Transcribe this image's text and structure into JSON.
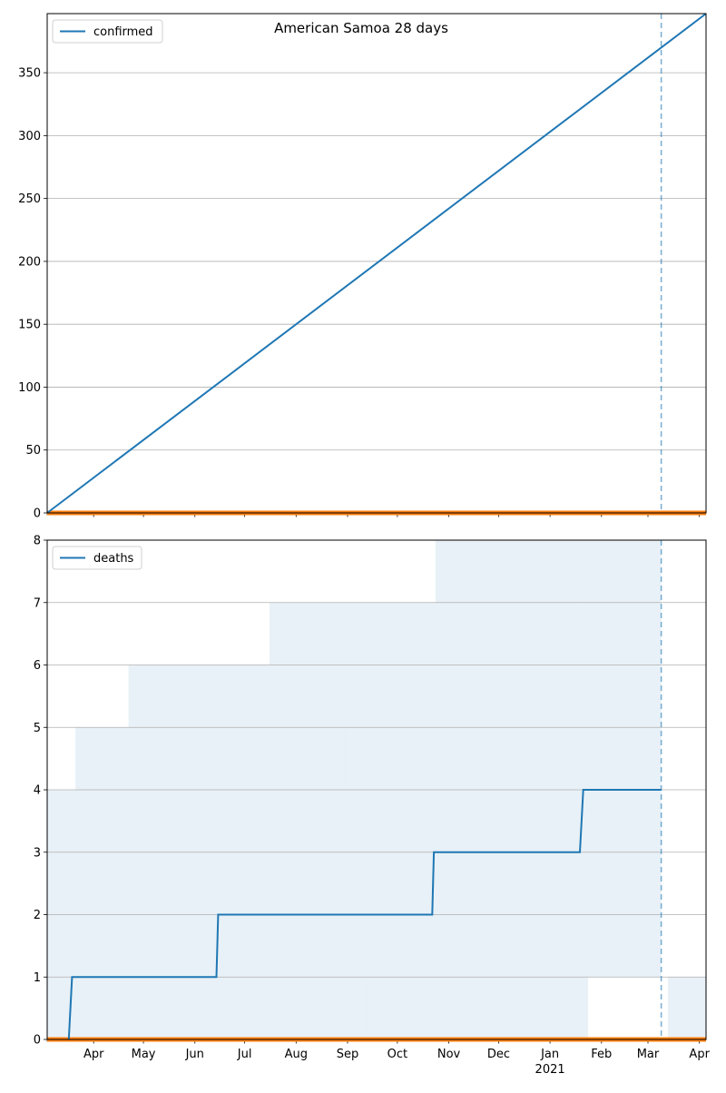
{
  "figure": {
    "title": "American Samoa 28 days"
  },
  "colors": {
    "series": "#1f77b4",
    "baseline": "#ff7f0e",
    "band": "#1f77b4",
    "grid": "#b0b0b0",
    "marker": "#1f77b4"
  },
  "x_axis": {
    "tick_labels": [
      "Apr",
      "May",
      "Jun",
      "Jul",
      "Aug",
      "Sep",
      "Oct",
      "Nov",
      "Dec",
      "Jan",
      "Feb",
      "Mar",
      "Apr"
    ],
    "tick_dates": [
      "2020-04-01",
      "2020-05-01",
      "2020-06-01",
      "2020-07-01",
      "2020-08-01",
      "2020-09-01",
      "2020-10-01",
      "2020-11-01",
      "2020-12-01",
      "2021-01-01",
      "2021-02-01",
      "2021-03-01",
      "2021-04-01"
    ],
    "year_label": "2021",
    "range": [
      "2020-03-04",
      "2021-04-05"
    ]
  },
  "chart_data": [
    {
      "type": "line",
      "title": "American Samoa 28 days",
      "legend": "confirmed",
      "legend_position": "upper-left",
      "grid": "horizontal",
      "ylim": [
        0,
        397
      ],
      "y_ticks": [
        0,
        50,
        100,
        150,
        200,
        250,
        300,
        350
      ],
      "vline_date": "2021-03-09",
      "series": [
        {
          "name": "confirmed",
          "points": [
            [
              "2020-03-04",
              0
            ],
            [
              "2021-04-05",
              397
            ]
          ]
        }
      ],
      "baseline_value": 0
    },
    {
      "type": "line",
      "legend": "deaths",
      "legend_position": "upper-left",
      "grid": "horizontal",
      "ylim": [
        0,
        8
      ],
      "y_ticks": [
        0,
        1,
        2,
        3,
        4,
        5,
        6,
        7,
        8
      ],
      "vline_date": "2021-03-09",
      "series": [
        {
          "name": "deaths",
          "points": [
            [
              "2020-03-17",
              0
            ],
            [
              "2020-03-19",
              1
            ],
            [
              "2020-06-14",
              1
            ],
            [
              "2020-06-15",
              2
            ],
            [
              "2020-10-22",
              2
            ],
            [
              "2020-10-23",
              3
            ],
            [
              "2021-01-19",
              3
            ],
            [
              "2021-01-21",
              4
            ],
            [
              "2021-03-09",
              4
            ]
          ]
        }
      ],
      "uncertainty_bands": [
        {
          "lo": 0,
          "hi": 1,
          "from": "2020-03-04",
          "to": "2020-05-25"
        },
        {
          "lo": 0,
          "hi": 1,
          "from": "2020-05-25",
          "to": "2020-09-13"
        },
        {
          "lo": 0,
          "hi": 1,
          "from": "2020-09-13",
          "to": "2021-01-24"
        },
        {
          "lo": 0,
          "hi": 1,
          "from": "2021-03-13",
          "to": "2021-03-22"
        },
        {
          "lo": 0,
          "hi": 1,
          "from": "2021-03-22",
          "to": "2021-04-05"
        },
        {
          "lo": 1,
          "hi": 2,
          "from": "2020-03-04",
          "to": "2020-03-29"
        },
        {
          "lo": 1,
          "hi": 2,
          "from": "2020-03-29",
          "to": "2020-10-16"
        },
        {
          "lo": 1,
          "hi": 2,
          "from": "2020-10-16",
          "to": "2021-03-09"
        },
        {
          "lo": 2,
          "hi": 3,
          "from": "2020-03-04",
          "to": "2020-03-20"
        },
        {
          "lo": 2,
          "hi": 3,
          "from": "2020-03-20",
          "to": "2020-06-13"
        },
        {
          "lo": 2,
          "hi": 3,
          "from": "2020-06-13",
          "to": "2021-03-09"
        },
        {
          "lo": 3,
          "hi": 4,
          "from": "2020-03-04",
          "to": "2020-06-03"
        },
        {
          "lo": 3,
          "hi": 4,
          "from": "2020-06-03",
          "to": "2020-09-10"
        },
        {
          "lo": 3,
          "hi": 4,
          "from": "2020-09-10",
          "to": "2021-03-09"
        },
        {
          "lo": 4,
          "hi": 5,
          "from": "2020-03-21",
          "to": "2020-08-30"
        },
        {
          "lo": 4,
          "hi": 5,
          "from": "2020-08-30",
          "to": "2020-12-08"
        },
        {
          "lo": 4,
          "hi": 5,
          "from": "2020-12-08",
          "to": "2021-03-09"
        },
        {
          "lo": 5,
          "hi": 6,
          "from": "2020-04-22",
          "to": "2020-10-27"
        },
        {
          "lo": 5,
          "hi": 6,
          "from": "2020-10-27",
          "to": "2021-03-09"
        },
        {
          "lo": 6,
          "hi": 7,
          "from": "2020-07-16",
          "to": "2021-01-18"
        },
        {
          "lo": 6,
          "hi": 7,
          "from": "2021-01-18",
          "to": "2021-03-09"
        },
        {
          "lo": 7,
          "hi": 8,
          "from": "2020-10-24",
          "to": "2021-03-09"
        }
      ],
      "baseline_value": 0
    }
  ]
}
